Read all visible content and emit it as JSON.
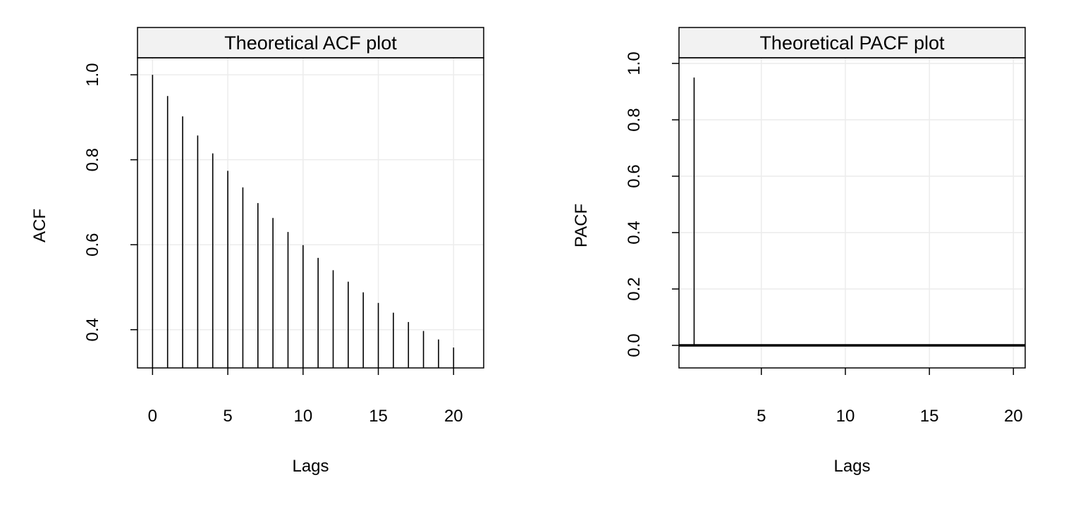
{
  "chart_data": [
    {
      "type": "bar",
      "title": "Theoretical ACF plot",
      "xlabel": "Lags",
      "ylabel": "ACF",
      "xlim": [
        -1,
        22
      ],
      "ylim": [
        0.31,
        1.04
      ],
      "xticks": [
        0,
        5,
        10,
        15,
        20
      ],
      "xtick_labels": [
        "0",
        "5",
        "10",
        "15",
        "20"
      ],
      "yticks": [
        0.4,
        0.6,
        0.8,
        1.0
      ],
      "ytick_labels": [
        "0.4",
        "0.6",
        "0.8",
        "1.0"
      ],
      "grid": true,
      "baseline": null,
      "x": [
        0,
        1,
        2,
        3,
        4,
        5,
        6,
        7,
        8,
        9,
        10,
        11,
        12,
        13,
        14,
        15,
        16,
        17,
        18,
        19,
        20
      ],
      "values": [
        1.0,
        0.95,
        0.902,
        0.857,
        0.815,
        0.774,
        0.735,
        0.698,
        0.663,
        0.63,
        0.599,
        0.569,
        0.54,
        0.513,
        0.488,
        0.463,
        0.44,
        0.418,
        0.397,
        0.377,
        0.358
      ],
      "colors": {
        "stroke": "#000000",
        "grid": "#ececec",
        "strip": "#f2f2f2"
      }
    },
    {
      "type": "bar",
      "title": "Theoretical PACF plot",
      "xlabel": "Lags",
      "ylabel": "PACF",
      "xlim": [
        0.1,
        20.7
      ],
      "ylim": [
        -0.08,
        1.02
      ],
      "xticks": [
        5,
        10,
        15,
        20
      ],
      "xtick_labels": [
        "5",
        "10",
        "15",
        "20"
      ],
      "yticks": [
        0.0,
        0.2,
        0.4,
        0.6,
        0.8,
        1.0
      ],
      "ytick_labels": [
        "0.0",
        "0.2",
        "0.4",
        "0.6",
        "0.8",
        "1.0"
      ],
      "grid": true,
      "baseline": 0,
      "x": [
        1,
        2,
        3,
        4,
        5,
        6,
        7,
        8,
        9,
        10,
        11,
        12,
        13,
        14,
        15,
        16,
        17,
        18,
        19,
        20
      ],
      "values": [
        0.95,
        0,
        0,
        0,
        0,
        0,
        0,
        0,
        0,
        0,
        0,
        0,
        0,
        0,
        0,
        0,
        0,
        0,
        0,
        0
      ],
      "colors": {
        "stroke": "#000000",
        "grid": "#ececec",
        "strip": "#f2f2f2"
      }
    }
  ]
}
